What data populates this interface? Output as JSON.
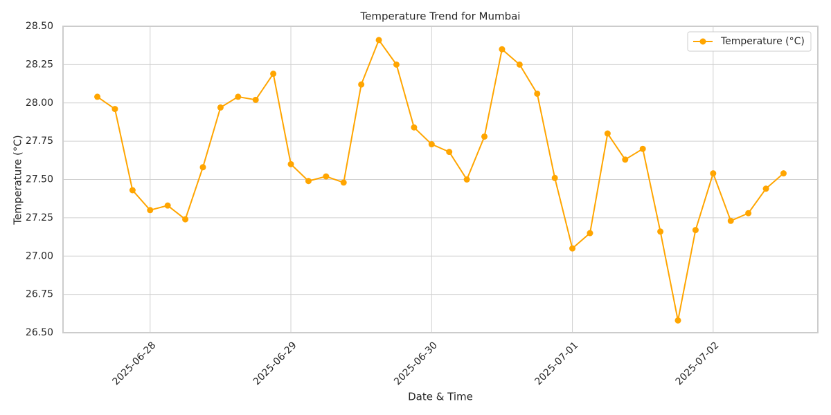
{
  "chart_data": {
    "type": "line",
    "title": "Temperature Trend for Mumbai",
    "x_label": "Date & Time",
    "y_label": "Temperature (°C)",
    "x": [
      "2025-06-27T15:00",
      "2025-06-27T18:00",
      "2025-06-27T21:00",
      "2025-06-28T00:00",
      "2025-06-28T03:00",
      "2025-06-28T06:00",
      "2025-06-28T09:00",
      "2025-06-28T12:00",
      "2025-06-28T15:00",
      "2025-06-28T18:00",
      "2025-06-28T21:00",
      "2025-06-29T00:00",
      "2025-06-29T03:00",
      "2025-06-29T06:00",
      "2025-06-29T09:00",
      "2025-06-29T12:00",
      "2025-06-29T15:00",
      "2025-06-29T18:00",
      "2025-06-29T21:00",
      "2025-06-30T00:00",
      "2025-06-30T03:00",
      "2025-06-30T06:00",
      "2025-06-30T09:00",
      "2025-06-30T12:00",
      "2025-06-30T15:00",
      "2025-06-30T18:00",
      "2025-06-30T21:00",
      "2025-07-01T00:00",
      "2025-07-01T03:00",
      "2025-07-01T06:00",
      "2025-07-01T09:00",
      "2025-07-01T12:00",
      "2025-07-01T15:00",
      "2025-07-01T18:00",
      "2025-07-01T21:00",
      "2025-07-02T00:00",
      "2025-07-02T03:00",
      "2025-07-02T06:00",
      "2025-07-02T09:00",
      "2025-07-02T12:00"
    ],
    "series": [
      {
        "name": "Temperature (°C)",
        "color": "#ffa500",
        "values": [
          28.04,
          27.96,
          27.43,
          27.3,
          27.33,
          27.24,
          27.58,
          27.97,
          28.04,
          28.02,
          28.19,
          27.6,
          27.49,
          27.52,
          27.48,
          28.12,
          28.41,
          28.25,
          27.84,
          27.73,
          27.68,
          27.5,
          27.78,
          28.35,
          28.25,
          28.06,
          27.51,
          27.05,
          27.15,
          27.8,
          27.63,
          27.7,
          27.16,
          26.58,
          27.17,
          27.54,
          27.23,
          27.28,
          27.44,
          27.54
        ]
      }
    ],
    "xlim": [
      "2025-06-27T09:09",
      "2025-07-02T17:51"
    ],
    "xticks": [
      "2025-06-28",
      "2025-06-29",
      "2025-06-30",
      "2025-07-01",
      "2025-07-02"
    ],
    "ylim": [
      26.5,
      28.5
    ],
    "yticks": [
      {
        "value": 26.5,
        "label": "26.50"
      },
      {
        "value": 26.75,
        "label": "26.75"
      },
      {
        "value": 27,
        "label": "27.00"
      },
      {
        "value": 27.25,
        "label": "27.25"
      },
      {
        "value": 27.5,
        "label": "27.50"
      },
      {
        "value": 27.75,
        "label": "27.75"
      },
      {
        "value": 28,
        "label": "28.00"
      },
      {
        "value": 28.25,
        "label": "28.25"
      },
      {
        "value": 28.5,
        "label": "28.50"
      }
    ],
    "grid": true,
    "legend_position": "upper-right"
  }
}
